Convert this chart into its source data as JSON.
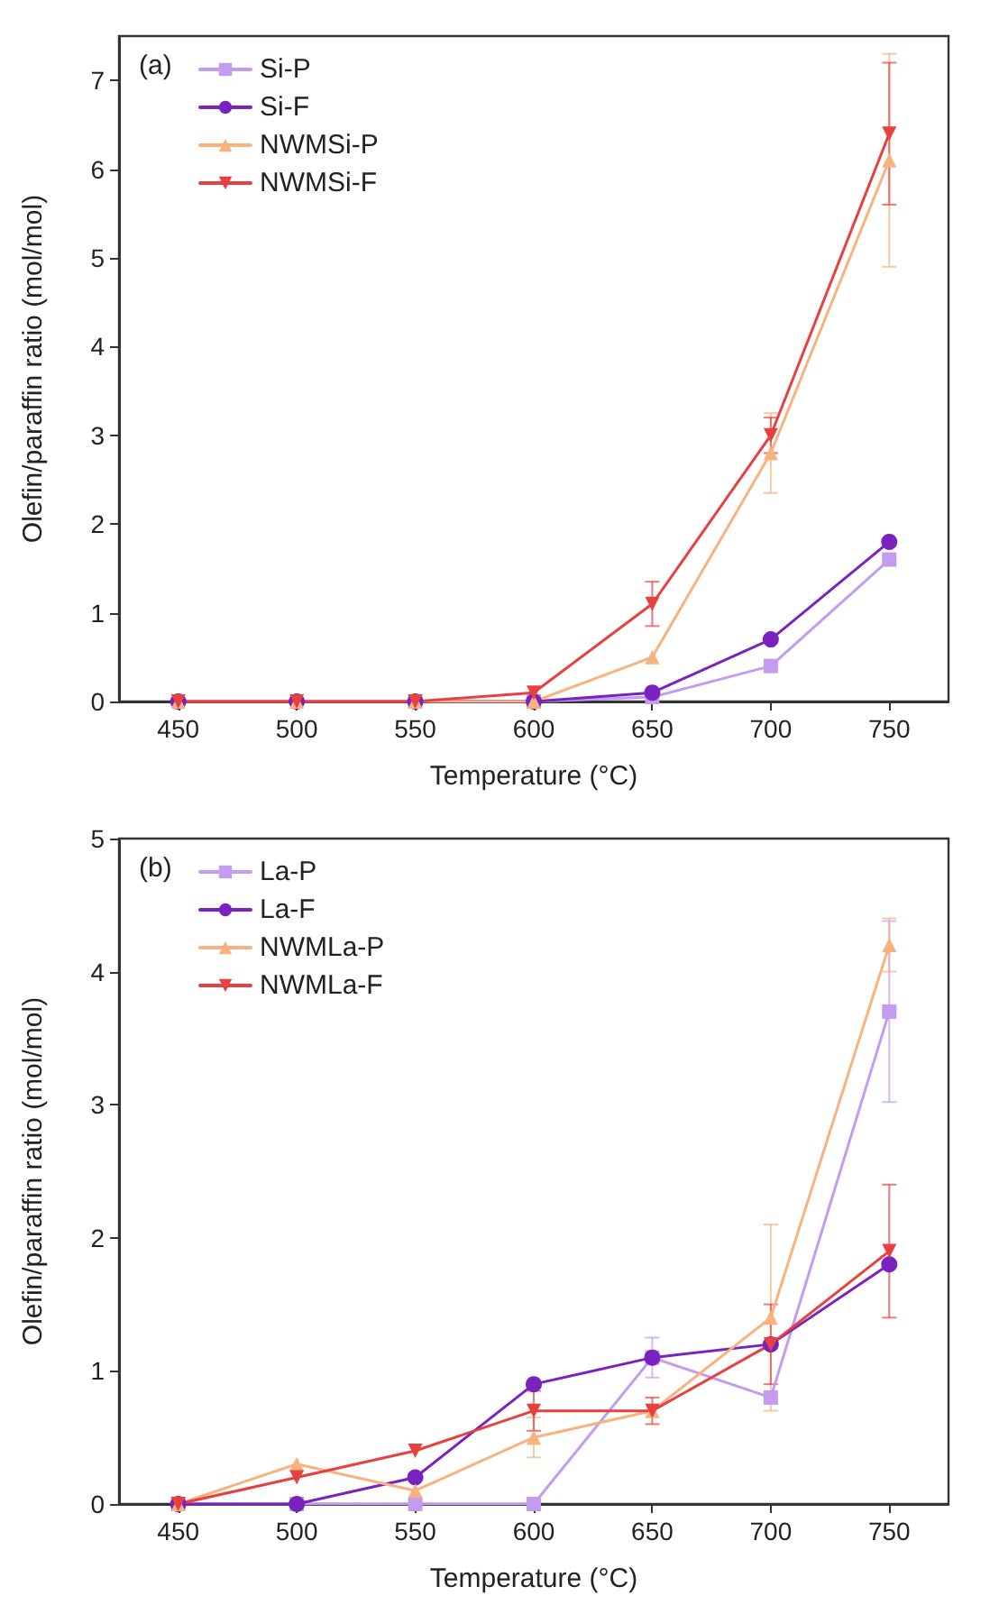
{
  "chart_data": [
    {
      "type": "line",
      "title": "(a)",
      "xlabel": "Temperature (°C)",
      "ylabel": "Olefin/paraffin ratio (mol/mol)",
      "x": [
        450,
        500,
        550,
        600,
        650,
        700,
        750
      ],
      "xlim": [
        425,
        775
      ],
      "xticks": [
        450,
        500,
        550,
        600,
        650,
        700,
        750
      ],
      "ylim": [
        0,
        7.5
      ],
      "yticks": [
        0,
        1,
        2,
        3,
        4,
        5,
        6,
        7
      ],
      "legend": "top left",
      "grid": false,
      "line_style": "solid",
      "series": [
        {
          "name": "Si-P",
          "color": "#c39bef",
          "marker": "square",
          "values": [
            null,
            null,
            0,
            0,
            0.05,
            0.4,
            1.6
          ]
        },
        {
          "name": "Si-F",
          "color": "#7a22c0",
          "marker": "circle",
          "values": [
            0,
            0,
            0,
            0,
            0.1,
            0.7,
            1.8
          ]
        },
        {
          "name": "NWMSi-P",
          "color": "#f7b27e",
          "marker": "triangle",
          "values": [
            0,
            0,
            0,
            0,
            0.5,
            2.8,
            6.1
          ],
          "errors": [
            null,
            null,
            null,
            null,
            null,
            0.45,
            1.2
          ]
        },
        {
          "name": "NWMSi-F",
          "color": "#e8403f",
          "marker": "triangle-down",
          "values": [
            0,
            0,
            0,
            0.1,
            1.1,
            3.0,
            6.4
          ],
          "errors": [
            null,
            null,
            null,
            null,
            0.25,
            0.2,
            0.8
          ]
        }
      ]
    },
    {
      "type": "line",
      "title": "(b)",
      "xlabel": "Temperature (°C)",
      "ylabel": "Olefin/paraffin ratio (mol/mol)",
      "x": [
        450,
        500,
        550,
        600,
        650,
        700,
        750
      ],
      "xlim": [
        425,
        775
      ],
      "xticks": [
        450,
        500,
        550,
        600,
        650,
        700,
        750
      ],
      "ylim": [
        0,
        5
      ],
      "yticks": [
        0,
        1,
        2,
        3,
        4,
        5
      ],
      "legend": "top left",
      "grid": false,
      "line_style": "solid",
      "series": [
        {
          "name": "La-P",
          "color": "#c39bef",
          "marker": "square",
          "values": [
            0,
            0,
            0,
            0,
            1.1,
            0.8,
            3.7
          ],
          "errors": [
            null,
            null,
            null,
            null,
            0.15,
            null,
            0.68
          ]
        },
        {
          "name": "La-F",
          "color": "#7a22c0",
          "marker": "circle",
          "values": [
            0,
            0,
            0.2,
            0.9,
            1.1,
            1.2,
            1.8
          ]
        },
        {
          "name": "NWMLa-P",
          "color": "#f7b27e",
          "marker": "triangle",
          "values": [
            0,
            0.3,
            0.1,
            0.5,
            0.7,
            1.4,
            4.2
          ],
          "errors": [
            null,
            null,
            null,
            0.15,
            null,
            0.7,
            0.2
          ]
        },
        {
          "name": "NWMLa-F",
          "color": "#e8403f",
          "marker": "triangle-down",
          "values": [
            0,
            0.2,
            0.4,
            0.7,
            0.7,
            1.2,
            1.9
          ],
          "errors": [
            null,
            null,
            null,
            0.15,
            0.1,
            0.3,
            0.5
          ]
        }
      ]
    }
  ]
}
